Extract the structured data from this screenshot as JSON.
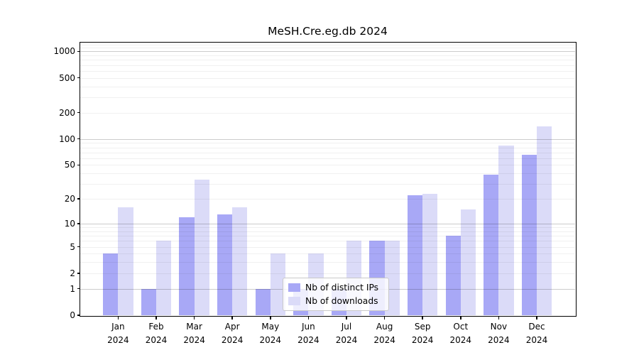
{
  "title": "MeSH.Cre.eg.db 2024",
  "legend": {
    "items": [
      {
        "label": "Nb of distinct IPs",
        "color": "#a8a8f6"
      },
      {
        "label": "Nb of downloads",
        "color": "#dbdbf8"
      }
    ]
  },
  "axes": {
    "y_tick_labels": [
      "0",
      "1",
      "2",
      "5",
      "10",
      "20",
      "50",
      "100",
      "200",
      "500",
      "1000"
    ],
    "x_year_line": "2024"
  },
  "chart_data": {
    "type": "bar",
    "title": "MeSH.Cre.eg.db 2024",
    "scale": "log1p",
    "categories": [
      "Jan 2024",
      "Feb 2024",
      "Mar 2024",
      "Apr 2024",
      "May 2024",
      "Jun 2024",
      "Jul 2024",
      "Aug 2024",
      "Sep 2024",
      "Oct 2024",
      "Nov 2024",
      "Dec 2024"
    ],
    "series": [
      {
        "name": "Nb of distinct IPs",
        "color": "#a8a8f6",
        "values": [
          4,
          1,
          12,
          13,
          1,
          1,
          1,
          6,
          22,
          7,
          39,
          66
        ]
      },
      {
        "name": "Nb of downloads",
        "color": "#dbdbf8",
        "values": [
          16,
          6,
          34,
          16,
          4,
          4,
          6,
          6,
          23,
          15,
          84,
          140
        ]
      }
    ],
    "y_ticks": [
      0,
      1,
      2,
      5,
      10,
      20,
      50,
      100,
      200,
      500,
      1000
    ],
    "ylim": [
      0,
      1258
    ],
    "grid": true,
    "legend_position": "lower center"
  }
}
